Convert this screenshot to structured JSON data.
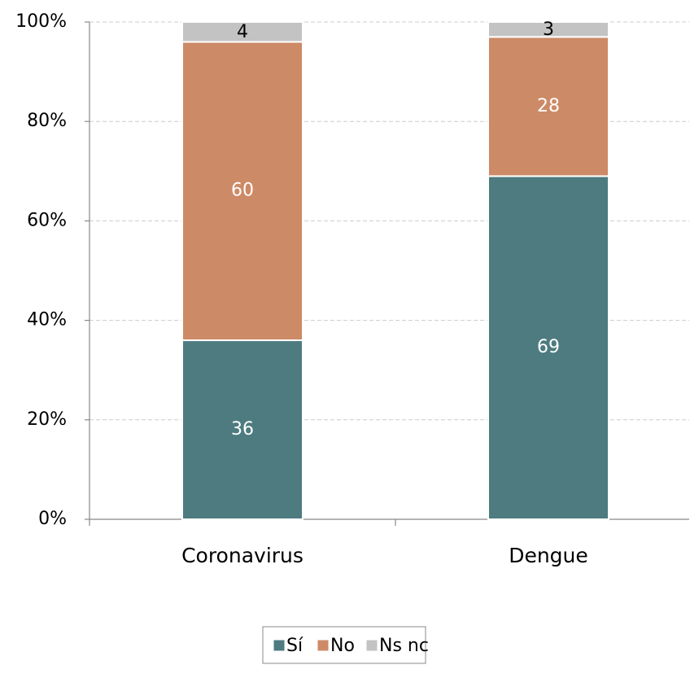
{
  "chart_data": {
    "type": "stacked_bar",
    "categories": [
      "Coronavirus",
      "Dengue"
    ],
    "series": [
      {
        "name": "Sí",
        "color": "#4d7b80",
        "values": [
          36,
          69
        ]
      },
      {
        "name": "No",
        "color": "#cd8a66",
        "values": [
          60,
          28
        ]
      },
      {
        "name": "Ns nc",
        "color": "#c3c3c3",
        "values": [
          4,
          3
        ]
      }
    ],
    "ylim": [
      0,
      100
    ],
    "yticks": [
      {
        "value": 0,
        "label": "0%"
      },
      {
        "value": 20,
        "label": "20%"
      },
      {
        "value": 40,
        "label": "40%"
      },
      {
        "value": 60,
        "label": "60%"
      },
      {
        "value": 80,
        "label": "80%"
      },
      {
        "value": 100,
        "label": "100%"
      }
    ],
    "grid": true,
    "legend": "bottom"
  }
}
